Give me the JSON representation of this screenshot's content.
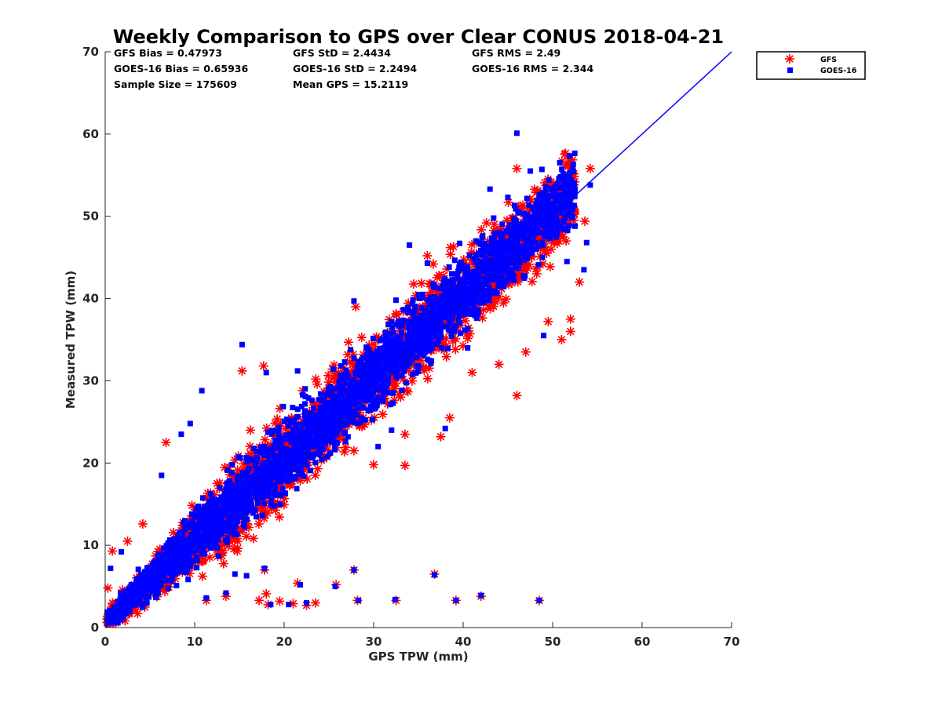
{
  "chart_data": {
    "type": "scatter",
    "title": "Weekly Comparison to GPS over Clear CONUS 2018-04-21",
    "xlabel": "GPS TPW (mm)",
    "ylabel": "Measured TPW (mm)",
    "xlim": [
      0,
      70
    ],
    "ylim": [
      0,
      70
    ],
    "xticks": [
      0,
      10,
      20,
      30,
      40,
      50,
      60,
      70
    ],
    "yticks": [
      0,
      10,
      20,
      30,
      40,
      50,
      60,
      70
    ],
    "tick_labels_x": [
      "0",
      "10",
      "20",
      "30",
      "40",
      "50",
      "60",
      "70"
    ],
    "tick_labels_y": [
      "0",
      "10",
      "20",
      "30",
      "40",
      "50",
      "60",
      "70"
    ],
    "stats": [
      [
        "GFS Bias = 0.47973",
        "GFS StD = 2.4434",
        "GFS RMS = 2.49"
      ],
      [
        "GOES-16 Bias = 0.65936",
        "GOES-16 StD = 2.2494",
        "GOES-16 RMS = 2.344"
      ],
      [
        "Sample Size = 175609",
        "Mean GPS = 15.2119",
        ""
      ]
    ],
    "reference_line": {
      "name": "1:1",
      "x": [
        0,
        70
      ],
      "y": [
        0,
        70
      ],
      "color": "#0000ff"
    },
    "legend_position": "upper-right-outside",
    "series": [
      {
        "name": "GFS",
        "marker": "asterisk",
        "color": "#ff0000",
        "band": {
          "x_min": 0.2,
          "x_max": 52.5,
          "offset": 0.5,
          "spread": 4.5,
          "count": 2300
        },
        "points": [
          [
            46,
            55.8
          ],
          [
            50.5,
            53.8
          ],
          [
            54.2,
            55.8
          ],
          [
            53.6,
            49.4
          ],
          [
            53,
            42
          ],
          [
            51.5,
            47
          ],
          [
            51,
            35
          ],
          [
            52,
            36
          ],
          [
            52,
            37.5
          ],
          [
            46,
            28.2
          ],
          [
            37.5,
            23.2
          ],
          [
            33.5,
            19.7
          ],
          [
            30,
            19.8
          ],
          [
            28,
            39
          ],
          [
            27.8,
            21.5
          ],
          [
            15.3,
            31.2
          ],
          [
            17.7,
            31.8
          ],
          [
            21.5,
            5.4
          ],
          [
            25.8,
            5.2
          ],
          [
            27.8,
            7
          ],
          [
            36.8,
            6.5
          ],
          [
            17.8,
            7
          ],
          [
            11.3,
            3.3
          ],
          [
            13.5,
            3.8
          ],
          [
            17.2,
            3.3
          ],
          [
            18.2,
            2.8
          ],
          [
            19.5,
            3.2
          ],
          [
            21,
            2.9
          ],
          [
            22.5,
            2.7
          ],
          [
            23.5,
            3
          ],
          [
            28.2,
            3.3
          ],
          [
            32.5,
            3.3
          ],
          [
            39.2,
            3.3
          ],
          [
            42,
            3.8
          ],
          [
            48.5,
            3.3
          ],
          [
            6.8,
            22.5
          ],
          [
            4.2,
            12.6
          ],
          [
            2.5,
            10.5
          ],
          [
            0.8,
            9.3
          ],
          [
            0.3,
            4.8
          ],
          [
            18,
            4.1
          ],
          [
            38.5,
            25.5
          ],
          [
            41,
            31
          ],
          [
            44,
            32
          ],
          [
            47,
            33.5
          ],
          [
            49.5,
            37.2
          ],
          [
            36,
            45.2
          ],
          [
            42.6,
            49.2
          ],
          [
            48,
            50.5
          ],
          [
            33.5,
            23.5
          ]
        ]
      },
      {
        "name": "GOES-16",
        "marker": "square",
        "color": "#0000ff",
        "band": {
          "x_min": 0.2,
          "x_max": 52.5,
          "offset": 0.7,
          "spread": 3.8,
          "count": 3200
        },
        "points": [
          [
            46,
            60.1
          ],
          [
            47.5,
            55.5
          ],
          [
            48.8,
            55.7
          ],
          [
            50.8,
            56.5
          ],
          [
            54.2,
            53.8
          ],
          [
            49.2,
            53.2
          ],
          [
            43,
            53.3
          ],
          [
            45,
            52.3
          ],
          [
            53.5,
            43.5
          ],
          [
            52.5,
            48.8
          ],
          [
            53.8,
            46.8
          ],
          [
            32.5,
            39.8
          ],
          [
            27.8,
            39.7
          ],
          [
            15.3,
            34.4
          ],
          [
            10.8,
            28.8
          ],
          [
            21.5,
            31.2
          ],
          [
            18,
            31
          ],
          [
            9.5,
            24.8
          ],
          [
            8.5,
            23.5
          ],
          [
            6.3,
            18.5
          ],
          [
            21.8,
            5.2
          ],
          [
            25.7,
            5
          ],
          [
            27.8,
            7
          ],
          [
            36.8,
            6.4
          ],
          [
            28.3,
            3.3
          ],
          [
            32.4,
            3.4
          ],
          [
            39.2,
            3.3
          ],
          [
            42,
            3.9
          ],
          [
            48.5,
            3.3
          ],
          [
            17.8,
            7.2
          ],
          [
            14.5,
            6.5
          ],
          [
            15.8,
            6.3
          ],
          [
            13.5,
            4.2
          ],
          [
            11.3,
            3.6
          ],
          [
            18.5,
            2.8
          ],
          [
            20.5,
            2.8
          ],
          [
            22.5,
            3
          ],
          [
            0.6,
            7.2
          ],
          [
            1.8,
            9.2
          ],
          [
            40.5,
            43.5
          ],
          [
            44.5,
            46.8
          ],
          [
            50,
            52.5
          ],
          [
            51.6,
            44.5
          ],
          [
            36,
            44.3
          ],
          [
            34,
            46.5
          ],
          [
            30.5,
            22
          ],
          [
            32,
            24
          ],
          [
            38,
            24.2
          ],
          [
            49,
            35.5
          ],
          [
            40.5,
            34
          ]
        ]
      }
    ]
  }
}
